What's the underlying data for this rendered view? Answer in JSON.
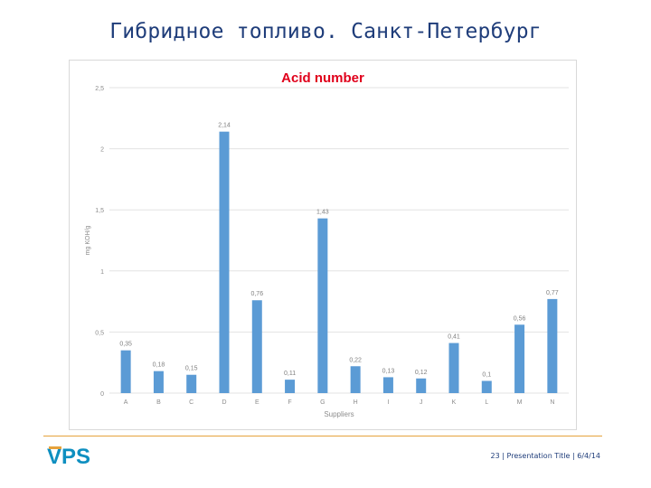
{
  "slide": {
    "title": "Гибридное топливо. Санкт-Петербург",
    "logo_text": "VPS",
    "footer": {
      "page": "23",
      "sep": "|",
      "presentation": "Presentation Title",
      "date": "6/4/14"
    }
  },
  "colors": {
    "title": "#1f3d7a",
    "bar": "#5b9bd5",
    "chart_title": "#e0001b",
    "accent_line": "#e6a23c",
    "logo": "#0e8fc0"
  },
  "chart_data": {
    "type": "bar",
    "title": "Acid number",
    "xlabel": "Suppliers",
    "ylabel": "mg KOH/g",
    "categories": [
      "A",
      "B",
      "C",
      "D",
      "E",
      "F",
      "G",
      "H",
      "I",
      "J",
      "K",
      "L",
      "M",
      "N"
    ],
    "values": [
      0.35,
      0.18,
      0.15,
      2.14,
      0.76,
      0.11,
      1.43,
      0.22,
      0.13,
      0.12,
      0.41,
      0.1,
      0.56,
      0.77
    ],
    "value_labels": [
      "0,35",
      "0,18",
      "0,15",
      "2,14",
      "0,76",
      "0,11",
      "1,43",
      "0,22",
      "0,13",
      "0,12",
      "0,41",
      "0,1",
      "0,56",
      "0,77"
    ],
    "yticks": [
      0,
      0.5,
      1,
      1.5,
      2,
      2.5
    ],
    "ytick_labels": [
      "0",
      "0,5",
      "1",
      "1,5",
      "2",
      "2,5"
    ],
    "ylim": [
      0,
      2.5
    ],
    "grid": true,
    "legend": "none"
  }
}
